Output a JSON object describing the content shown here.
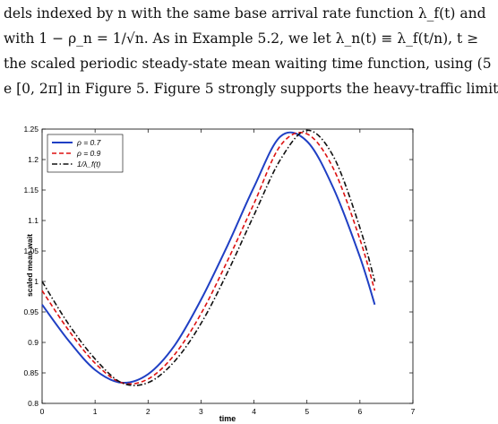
{
  "body_text": [
    "dels indexed by n with the same base arrival rate function λ_f(t) and",
    "with 1 − ρ_n = 1/√n.  As in Example 5.2, we let λ_n(t) ≡ λ_f(t/n), t ≥",
    "the scaled periodic steady-state mean waiting time function, using (5",
    "e [0, 2π] in Figure 5.  Figure 5 strongly supports the heavy-traffic limit"
  ],
  "chart_data": {
    "type": "line",
    "title": "",
    "xlabel": "time",
    "ylabel": "scaled mean wait",
    "xlim": [
      0,
      7
    ],
    "ylim": [
      0.8,
      1.25
    ],
    "xticks": [
      "0",
      "1",
      "2",
      "3",
      "4",
      "5",
      "6",
      "7"
    ],
    "yticks": [
      "0.8",
      "0.85",
      "0.9",
      "0.95",
      "1",
      "1.05",
      "1.1",
      "1.15",
      "1.2",
      "1.25"
    ],
    "grid": false,
    "legend_position": "top-left",
    "series": [
      {
        "name": "ρ = 0.7",
        "color": "#1f3fc4",
        "style": "solid",
        "x": [
          0.0,
          0.5,
          1.0,
          1.5,
          2.0,
          2.5,
          3.0,
          3.5,
          4.0,
          4.5,
          5.0,
          5.5,
          6.0,
          6.28
        ],
        "y": [
          0.962,
          0.903,
          0.855,
          0.834,
          0.848,
          0.895,
          0.97,
          1.059,
          1.155,
          1.238,
          1.23,
          1.153,
          1.04,
          0.962
        ]
      },
      {
        "name": "ρ = 0.9",
        "color": "#dd1111",
        "style": "dashed",
        "x": [
          0.0,
          0.5,
          1.0,
          1.5,
          2.0,
          2.5,
          3.0,
          3.5,
          4.0,
          4.5,
          5.0,
          5.5,
          6.0,
          6.28
        ],
        "y": [
          0.985,
          0.92,
          0.866,
          0.834,
          0.84,
          0.88,
          0.947,
          1.034,
          1.128,
          1.223,
          1.242,
          1.185,
          1.069,
          0.985
        ]
      },
      {
        "name": "1/λ_f(t)",
        "color": "#111111",
        "style": "dashdot",
        "x": [
          0.0,
          0.5,
          1.0,
          1.5,
          2.0,
          2.5,
          3.0,
          3.5,
          4.0,
          4.5,
          5.0,
          5.5,
          6.0,
          6.28
        ],
        "y": [
          1.0,
          0.93,
          0.873,
          0.834,
          0.834,
          0.869,
          0.931,
          1.015,
          1.109,
          1.2,
          1.248,
          1.205,
          1.088,
          1.0
        ]
      }
    ]
  }
}
